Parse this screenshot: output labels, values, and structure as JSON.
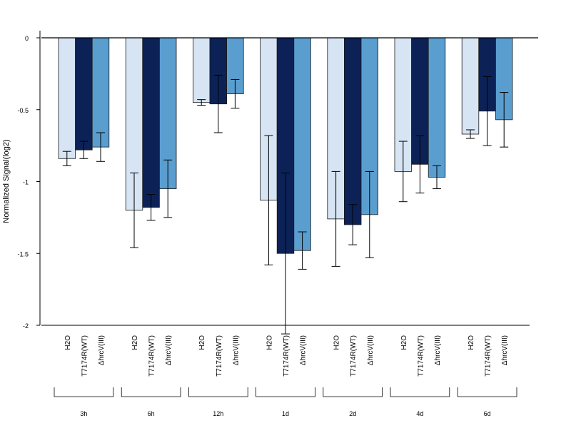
{
  "chart_data": {
    "type": "bar",
    "title": "",
    "xlabel": "",
    "ylabel": "Normalized Signal(log2)",
    "ylim": [
      -2,
      0
    ],
    "yticks": [
      0,
      -0.5,
      -1,
      -1.5,
      -2
    ],
    "ytick_labels": [
      "0",
      "-0.5",
      "-1",
      "-1.5",
      "-2"
    ],
    "groups": [
      "3h",
      "6h",
      "12h",
      "1d",
      "2d",
      "4d",
      "6d"
    ],
    "bar_labels": [
      "H2O",
      "T7174R(WT)",
      "ΔhrcV(III)"
    ],
    "series": [
      {
        "name": "H2O",
        "color": "#d6e4f3",
        "values": [
          -0.84,
          -1.2,
          -0.45,
          -1.13,
          -1.26,
          -0.93,
          -0.67
        ],
        "errors": [
          0.05,
          0.26,
          0.02,
          0.45,
          0.33,
          0.21,
          0.03
        ]
      },
      {
        "name": "T7174R(WT)",
        "color": "#0c2257",
        "values": [
          -0.78,
          -1.18,
          -0.46,
          -1.5,
          -1.3,
          -0.88,
          -0.51
        ],
        "errors": [
          0.06,
          0.09,
          0.2,
          0.56,
          0.14,
          0.2,
          0.24
        ]
      },
      {
        "name": "ΔhrcV(III)",
        "color": "#5a9ed0",
        "values": [
          -0.76,
          -1.05,
          -0.39,
          -1.48,
          -1.23,
          -0.97,
          -0.57
        ],
        "errors": [
          0.1,
          0.2,
          0.1,
          0.13,
          0.3,
          0.08,
          0.19
        ]
      }
    ],
    "grid": false,
    "legend": "none"
  }
}
